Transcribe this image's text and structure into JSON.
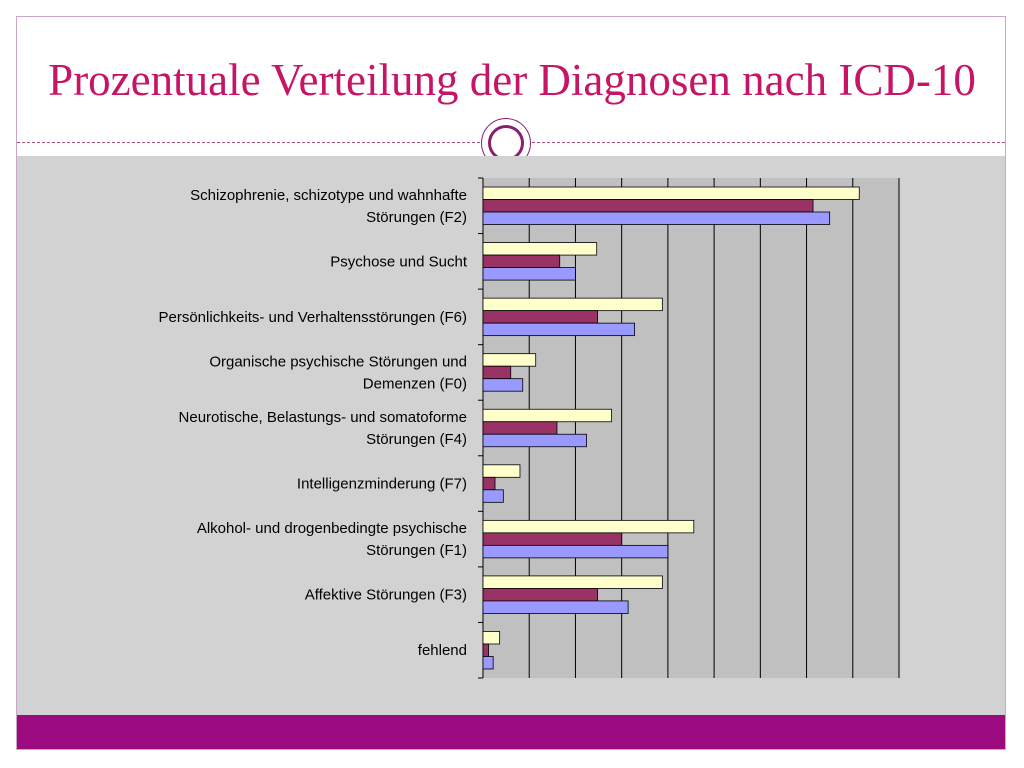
{
  "slide": {
    "title": "Prozentuale Verteilung der Diagnosen nach ICD-10"
  },
  "colors": {
    "title": "#c71566",
    "footer": "#9b0a7e",
    "plot_background": "#c0c0c0",
    "series": [
      "#ffffcc",
      "#993366",
      "#9999ff"
    ]
  },
  "chart_data": {
    "type": "bar",
    "orientation": "horizontal",
    "title": "",
    "xlabel": "",
    "ylabel": "",
    "grid": true,
    "legend": "none",
    "xlim": [
      0,
      45
    ],
    "categories": [
      [
        "Schizophrenie, schizotype und wahnhafte",
        "Störungen (F2)"
      ],
      [
        "Psychose und Sucht"
      ],
      [
        "Persönlichkeits- und Verhaltensstörungen (F6)"
      ],
      [
        "Organische psychische Störungen und",
        "Demenzen (F0)"
      ],
      [
        "Neurotische, Belastungs- und somatoforme",
        "Störungen (F4)"
      ],
      [
        "Intelligenzminderung (F7)"
      ],
      [
        "Alkohol- und drogenbedingte psychische",
        "Störungen (F1)"
      ],
      [
        "Affektive Störungen (F3)"
      ],
      [
        "fehlend"
      ]
    ],
    "series": [
      {
        "values": [
          40.7,
          12.3,
          19.4,
          5.7,
          13.9,
          4.0,
          22.8,
          19.4,
          1.8
        ]
      },
      {
        "values": [
          35.7,
          8.3,
          12.4,
          3.0,
          8.0,
          1.3,
          15.0,
          12.4,
          0.6
        ]
      },
      {
        "values": [
          37.5,
          10.0,
          16.4,
          4.3,
          11.2,
          2.2,
          20.0,
          15.7,
          1.1
        ]
      }
    ]
  }
}
